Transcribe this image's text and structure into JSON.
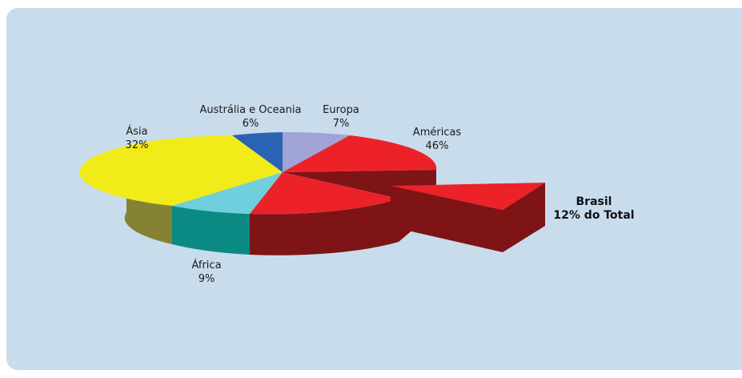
{
  "chart_data": {
    "type": "pie",
    "style": "3d-exploded",
    "slices": [
      {
        "name": "Europa",
        "percent": "7%",
        "value": 7,
        "color": "#9fa3d6"
      },
      {
        "name": "Américas",
        "percent": "46%",
        "value": 46,
        "color": "#ec2228",
        "sub_slice": {
          "name": "Brasil",
          "percent": "12% do Total",
          "value": 12,
          "exploded": true
        }
      },
      {
        "name": "África",
        "percent": "9%",
        "value": 9,
        "color": "#6fcfdc"
      },
      {
        "name": "Ásia",
        "percent": "32%",
        "value": 32,
        "color": "#f2eb1a"
      },
      {
        "name": "Austrália e Oceania",
        "percent": "6%",
        "value": 6,
        "color": "#2a63b3"
      }
    ],
    "side_colors": {
      "Américas": "#7e1416",
      "África": "#0b8a84",
      "Ásia": "#858234"
    }
  }
}
